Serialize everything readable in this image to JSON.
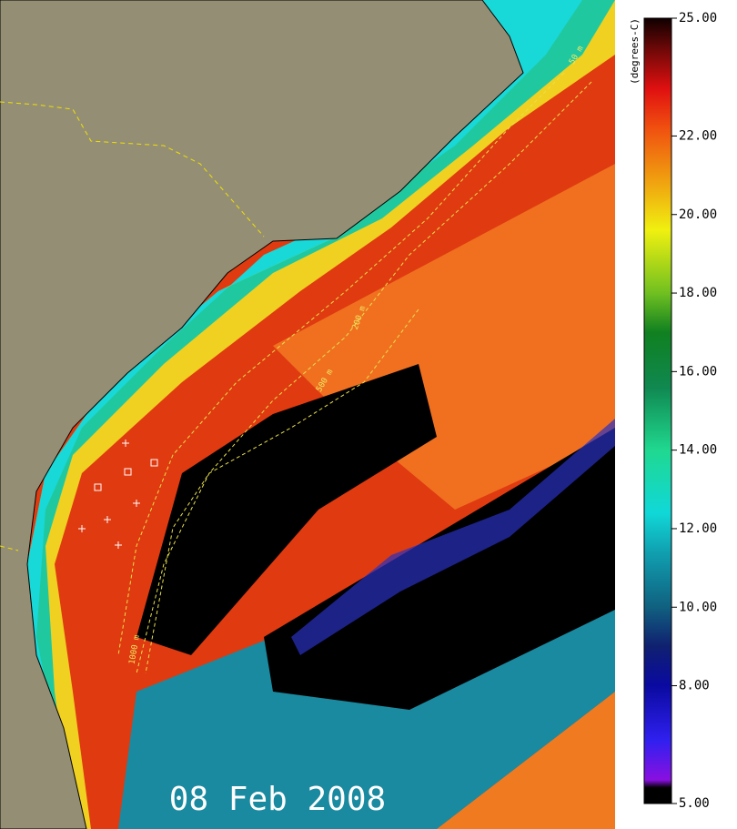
{
  "colorbar": {
    "title": "(degrees-C)",
    "range": [
      5,
      25
    ],
    "ticks": [
      {
        "value": 25,
        "label": "25.00"
      },
      {
        "value": 22,
        "label": "22.00"
      },
      {
        "value": 20,
        "label": "20.00"
      },
      {
        "value": 18,
        "label": "18.00"
      },
      {
        "value": 16,
        "label": "16.00"
      },
      {
        "value": 14,
        "label": "14.00"
      },
      {
        "value": 12,
        "label": "12.00"
      },
      {
        "value": 10,
        "label": "10.00"
      },
      {
        "value": 8,
        "label": "8.00"
      },
      {
        "value": 5,
        "label": "5.00"
      }
    ]
  },
  "map": {
    "date": "08 Feb 2008",
    "contour_labels": [
      "50 m",
      "200 m",
      "500 m",
      "1000 m"
    ]
  }
}
